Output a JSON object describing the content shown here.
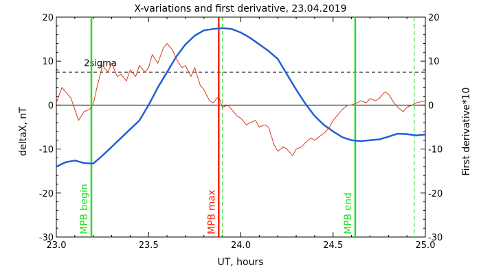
{
  "chart_data": {
    "type": "line",
    "title": "X-variations and first derivative, 23.04.2019",
    "xlabel": "UT, hours",
    "ylabel_left": "deltaX, nT",
    "ylabel_right": "First derivative*10",
    "xlim": [
      23.0,
      25.0
    ],
    "ylim": [
      -30,
      20
    ],
    "x_ticks": [
      "23.0",
      "23.5",
      "24.0",
      "24.5",
      "25.0"
    ],
    "y_ticks": [
      "20",
      "10",
      "0",
      "-10",
      "-20",
      "-30"
    ],
    "colors": {
      "deltaX": "#1f5fd6",
      "derivative": "#d83a1e",
      "mpb_markers": "#22dd22",
      "mpb_max": "#ff2200"
    },
    "threshold": {
      "label": "2sigma",
      "y": 7.5
    },
    "series": [
      {
        "key": "deltaX",
        "x": [
          23.0,
          23.05,
          23.1,
          23.15,
          23.2,
          23.25,
          23.3,
          23.35,
          23.4,
          23.45,
          23.5,
          23.55,
          23.6,
          23.65,
          23.7,
          23.75,
          23.8,
          23.85,
          23.9,
          23.95,
          24.0,
          24.05,
          24.1,
          24.15,
          24.2,
          24.25,
          24.3,
          24.35,
          24.4,
          24.45,
          24.5,
          24.55,
          24.6,
          24.65,
          24.7,
          24.75,
          24.8,
          24.85,
          24.9,
          24.95,
          25.0
        ],
        "values": [
          -14.0,
          -13.0,
          -12.6,
          -13.2,
          -13.3,
          -11.5,
          -9.5,
          -7.5,
          -5.5,
          -3.5,
          0.0,
          4.0,
          7.5,
          11.0,
          13.8,
          15.8,
          17.0,
          17.3,
          17.5,
          17.3,
          16.5,
          15.3,
          13.8,
          12.3,
          10.5,
          7.0,
          3.5,
          0.3,
          -2.5,
          -4.5,
          -6.0,
          -7.3,
          -8.0,
          -8.2,
          -8.0,
          -7.8,
          -7.2,
          -6.5,
          -6.6,
          -6.9,
          -6.7
        ]
      },
      {
        "key": "derivative",
        "x": [
          23.0,
          23.03,
          23.05,
          23.08,
          23.1,
          23.12,
          23.15,
          23.18,
          23.2,
          23.22,
          23.25,
          23.28,
          23.3,
          23.33,
          23.35,
          23.38,
          23.4,
          23.43,
          23.45,
          23.48,
          23.5,
          23.52,
          23.55,
          23.58,
          23.6,
          23.63,
          23.65,
          23.68,
          23.7,
          23.73,
          23.75,
          23.78,
          23.8,
          23.83,
          23.85,
          23.88,
          23.9,
          23.93,
          23.95,
          23.98,
          24.0,
          24.03,
          24.05,
          24.08,
          24.1,
          24.13,
          24.15,
          24.18,
          24.2,
          24.23,
          24.25,
          24.28,
          24.3,
          24.33,
          24.35,
          24.38,
          24.4,
          24.43,
          24.45,
          24.48,
          24.5,
          24.53,
          24.55,
          24.58,
          24.6,
          24.63,
          24.65,
          24.68,
          24.7,
          24.73,
          24.75,
          24.78,
          24.8,
          24.83,
          24.85,
          24.88,
          24.9,
          24.93,
          24.95,
          24.98,
          25.0
        ],
        "values": [
          0.5,
          4.0,
          3.0,
          1.5,
          -1.0,
          -3.5,
          -1.5,
          -1.0,
          0.2,
          4.0,
          9.0,
          7.5,
          9.5,
          6.5,
          7.0,
          5.5,
          8.0,
          6.5,
          9.0,
          7.5,
          8.5,
          11.5,
          9.5,
          13.0,
          14.0,
          12.5,
          10.5,
          8.5,
          9.0,
          6.5,
          8.5,
          4.5,
          3.5,
          1.0,
          0.5,
          2.0,
          -0.5,
          0.0,
          -1.0,
          -2.5,
          -3.0,
          -4.5,
          -4.0,
          -3.5,
          -5.0,
          -4.5,
          -5.0,
          -9.0,
          -10.5,
          -9.5,
          -10.0,
          -11.5,
          -10.0,
          -9.5,
          -8.5,
          -7.5,
          -8.0,
          -7.0,
          -6.5,
          -5.0,
          -3.5,
          -2.0,
          -1.0,
          0.0,
          0.0,
          0.5,
          1.0,
          0.5,
          1.5,
          1.0,
          1.5,
          3.0,
          2.5,
          0.5,
          -0.5,
          -1.5,
          -0.5,
          0.0,
          0.5,
          0.8,
          1.0
        ]
      }
    ],
    "markers": [
      {
        "label": "MPB begin",
        "x": 23.19,
        "color": "#22dd22",
        "style": "solid"
      },
      {
        "label": "MPB max",
        "x": 23.88,
        "color": "#ff2200",
        "style": "solid"
      },
      {
        "label": "MPB end",
        "x": 24.62,
        "color": "#22dd22",
        "style": "solid"
      },
      {
        "label": "",
        "x": 23.9,
        "color": "#22dd22",
        "style": "dashed"
      },
      {
        "label": "",
        "x": 24.94,
        "color": "#22dd22",
        "style": "dashed"
      }
    ]
  }
}
